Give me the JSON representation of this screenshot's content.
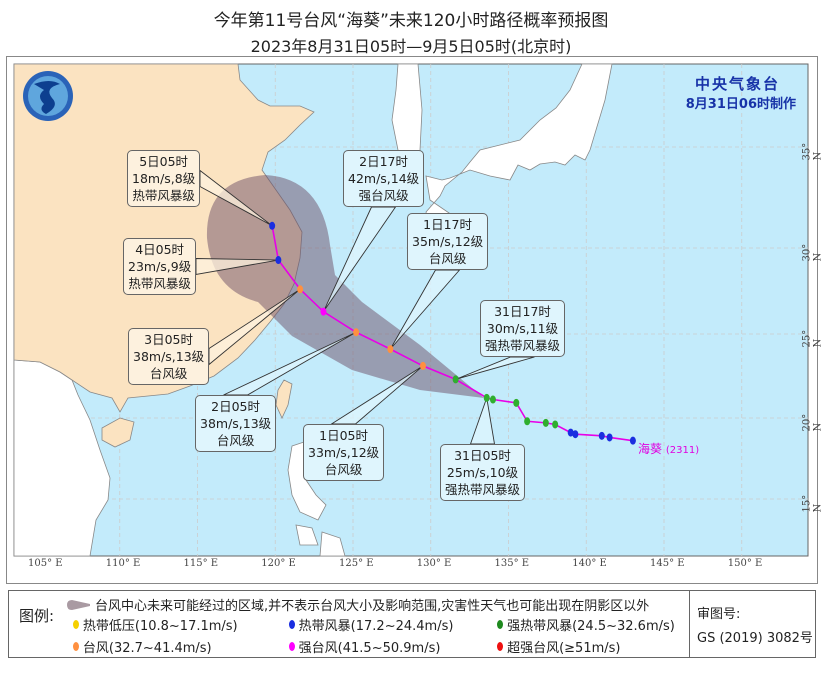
{
  "header": {
    "title": "今年第11号台风“海葵”未来120小时路径概率预报图",
    "subtitle": "2023年8月31日05时—9月5日05时(北京时)"
  },
  "agency": {
    "name": "中央气象台",
    "issued": "8月31日06时制作"
  },
  "map": {
    "lon_labels": [
      "105° E",
      "110° E",
      "115° E",
      "120° E",
      "125° E",
      "130° E",
      "135° E",
      "140° E",
      "145° E",
      "150° E"
    ],
    "lat_labels": [
      "35° N",
      "30° N",
      "25° N",
      "20° N",
      "15° N"
    ],
    "colors": {
      "sea": "#c3ebfb",
      "china": "#fbe3c1",
      "other_land": "#ffffff",
      "cone": "#6e5068",
      "track": "#e800e8"
    },
    "typhoon_name": "海葵",
    "typhoon_id": "(2311)",
    "track_history": [
      {
        "lon": 143.0,
        "lat": 18.6,
        "level": "tropical_storm"
      },
      {
        "lon": 141.5,
        "lat": 18.8,
        "level": "tropical_storm"
      },
      {
        "lon": 141.0,
        "lat": 18.9,
        "level": "tropical_storm"
      },
      {
        "lon": 139.3,
        "lat": 19.0,
        "level": "tropical_storm"
      },
      {
        "lon": 139.0,
        "lat": 19.1,
        "level": "tropical_storm"
      },
      {
        "lon": 138.0,
        "lat": 19.6,
        "level": "severe_tropical_storm"
      },
      {
        "lon": 137.4,
        "lat": 19.7,
        "level": "severe_tropical_storm"
      },
      {
        "lon": 136.2,
        "lat": 19.8,
        "level": "severe_tropical_storm"
      },
      {
        "lon": 135.5,
        "lat": 20.9,
        "level": "severe_tropical_storm"
      },
      {
        "lon": 134.0,
        "lat": 21.1,
        "level": "severe_tropical_storm"
      }
    ],
    "forecast": [
      {
        "time": "31日05时",
        "speed": "25m/s,10级",
        "category": "强热带风暴级",
        "lon": 133.6,
        "lat": 21.2,
        "level": "severe_tropical_storm"
      },
      {
        "time": "31日17时",
        "speed": "30m/s,11级",
        "category": "强热带风暴级",
        "lon": 131.6,
        "lat": 22.3,
        "level": "severe_tropical_storm"
      },
      {
        "time": "1日05时",
        "speed": "33m/s,12级",
        "category": "台风级",
        "lon": 129.5,
        "lat": 23.1,
        "level": "typhoon"
      },
      {
        "time": "1日17时",
        "speed": "35m/s,12级",
        "category": "台风级",
        "lon": 127.4,
        "lat": 24.1,
        "level": "typhoon"
      },
      {
        "time": "2日05时",
        "speed": "38m/s,13级",
        "category": "台风级",
        "lon": 125.2,
        "lat": 25.1,
        "level": "typhoon"
      },
      {
        "time": "2日17时",
        "speed": "42m/s,14级",
        "category": "强台风级",
        "lon": 123.1,
        "lat": 26.3,
        "level": "severe_typhoon"
      },
      {
        "time": "3日05时",
        "speed": "38m/s,13级",
        "category": "台风级",
        "lon": 121.6,
        "lat": 27.6,
        "level": "typhoon"
      },
      {
        "time": "4日05时",
        "speed": "23m/s,9级",
        "category": "热带风暴级",
        "lon": 120.2,
        "lat": 29.3,
        "level": "tropical_storm"
      },
      {
        "time": "5日05时",
        "speed": "18m/s,8级",
        "category": "热带风暴级",
        "lon": 119.8,
        "lat": 31.1,
        "level": "tropical_storm"
      }
    ]
  },
  "legend": {
    "title": "图例:",
    "cone_text": "台风中心未来可能经过的区域,并不表示台风大小及影响范围,灾害性天气也可能出现在阴影区以外",
    "items": [
      {
        "label": "热带低压(10.8~17.1m/s)",
        "color": "#f5d000"
      },
      {
        "label": "热带风暴(17.2~24.4m/s)",
        "color": "#1a2ee0"
      },
      {
        "label": "强热带风暴(24.5~32.6m/s)",
        "color": "#1f8a1f"
      },
      {
        "label": "台风(32.7~41.4m/s)",
        "color": "#ff9040"
      },
      {
        "label": "强台风(41.5~50.9m/s)",
        "color": "#ff00ff"
      },
      {
        "label": "超强台风(≥51m/s)",
        "color": "#ee1010"
      }
    ]
  },
  "approval": {
    "label": "审图号:",
    "number": "GS (2019) 3082号"
  }
}
